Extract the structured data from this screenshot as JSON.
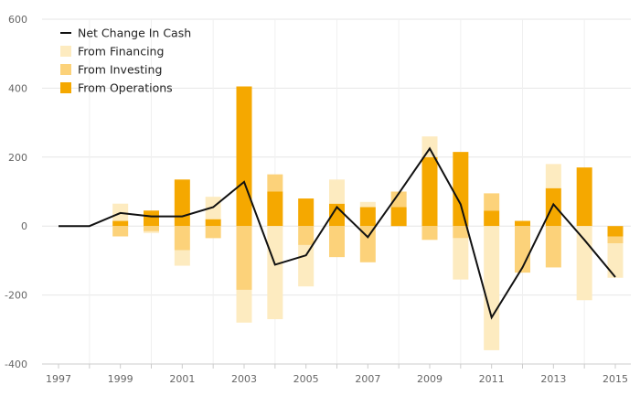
{
  "chart_data": {
    "type": "bar",
    "title": "",
    "xlabel": "",
    "ylabel": "",
    "ylim": [
      -400,
      600
    ],
    "y_ticks": [
      -400,
      -200,
      0,
      200,
      400,
      600
    ],
    "x_tick_labels": [
      "1997",
      "1999",
      "2001",
      "2003",
      "2005",
      "2007",
      "2009",
      "2011",
      "2013",
      "2015"
    ],
    "categories": [
      "1997",
      "1998",
      "1999",
      "2000",
      "2001",
      "2002",
      "2003",
      "2004",
      "2005",
      "2006",
      "2007",
      "2008",
      "2009",
      "2010",
      "2011",
      "2012",
      "2013",
      "2014",
      "2015"
    ],
    "series": [
      {
        "name": "From Operations",
        "kind": "bar",
        "color": "#f5a800",
        "values": [
          0,
          0,
          15,
          45,
          135,
          20,
          405,
          100,
          80,
          65,
          55,
          55,
          200,
          215,
          45,
          15,
          110,
          170,
          -30
        ]
      },
      {
        "name": "From Investing",
        "kind": "bar",
        "color": "#fcd27a",
        "values": [
          0,
          0,
          -30,
          -15,
          -70,
          -35,
          -185,
          50,
          -55,
          -90,
          -105,
          45,
          -40,
          -35,
          50,
          -135,
          -120,
          0,
          -20
        ]
      },
      {
        "name": "From Financing",
        "kind": "bar",
        "color": "#fdebc0",
        "values": [
          0,
          0,
          50,
          -5,
          -45,
          65,
          -95,
          -270,
          -120,
          70,
          15,
          0,
          60,
          -120,
          -360,
          0,
          70,
          -215,
          -100
        ]
      },
      {
        "name": "Net Change In Cash",
        "kind": "line",
        "color": "#111111",
        "values": [
          0,
          0,
          38,
          28,
          28,
          55,
          128,
          -112,
          -85,
          55,
          -32,
          95,
          225,
          63,
          -265,
          -120,
          63,
          -40,
          -148
        ]
      }
    ],
    "legend": {
      "position": "top-left",
      "order": [
        "Net Change In Cash",
        "From Financing",
        "From Investing",
        "From Operations"
      ]
    },
    "grid": true
  }
}
